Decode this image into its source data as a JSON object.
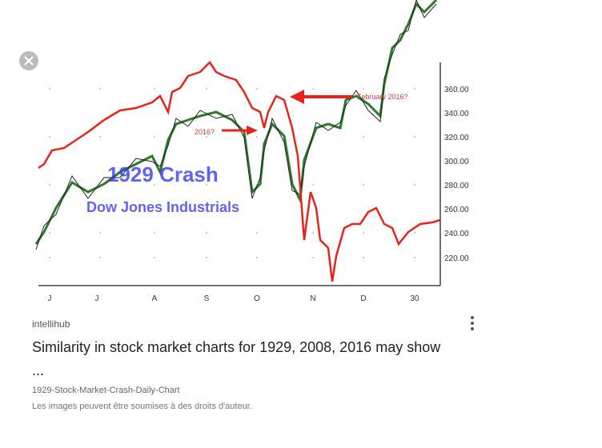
{
  "image": {
    "y_axis_labels": [
      "360.00",
      "340.00",
      "320.00",
      "300.00",
      "280.00",
      "260.00",
      "240.00",
      "220.00"
    ],
    "x_axis_labels": [
      "J",
      "J",
      "A",
      "S",
      "O",
      "N",
      "D",
      "30"
    ],
    "overlay_title": "1929 Crash",
    "overlay_subtitle": "Dow Jones Industrials",
    "annotation_right": "February 2016?",
    "annotation_left": "2016?"
  },
  "result": {
    "source": "intellihub",
    "title": "Similarity in stock market charts for 1929, 2008, 2016 may show ...",
    "filename": "1929-Stock-Market-Crash-Daily-Chart",
    "notice": "Les images peuvent être soumises à des droits d'auteur."
  }
}
